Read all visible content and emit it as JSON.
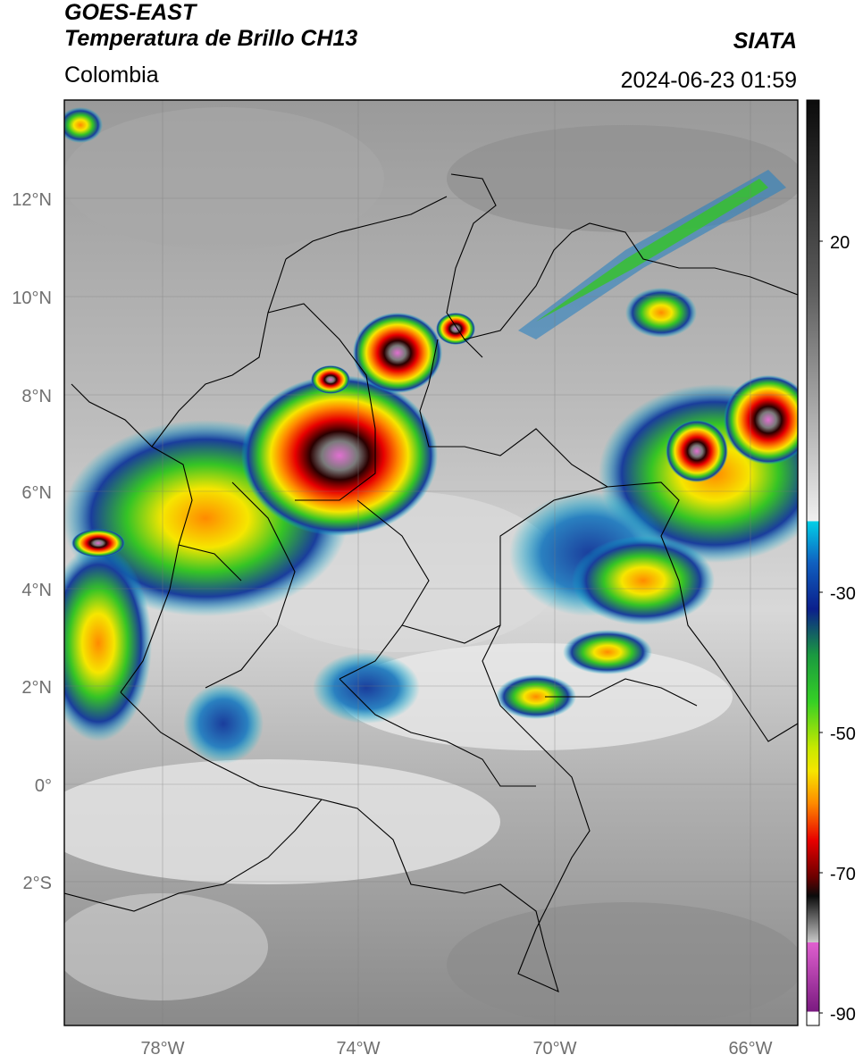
{
  "header": {
    "satellite": "GOES-EAST",
    "product": "Temperatura de Brillo CH13",
    "region": "Colombia",
    "agency": "SIATA",
    "timestamp": "2024-06-23 01:59"
  },
  "map": {
    "lat_labels": [
      "12°N",
      "10°N",
      "8°N",
      "6°N",
      "4°N",
      "2°N",
      "0°",
      "2°S"
    ],
    "lon_labels": [
      "78°W",
      "74°W",
      "70°W",
      "66°W"
    ],
    "lon_range": [
      -80,
      -65
    ],
    "lat_range": [
      -5,
      14
    ]
  },
  "colorbar": {
    "ticks": [
      "20",
      "-30",
      "-50",
      "-70",
      "-90"
    ],
    "colors": {
      "top": "#0b0b0b",
      "gray_mid": "#8a8a8a",
      "light": "#e8e8e8",
      "cyan": "#00bcd4",
      "blue": "#1a3d9c",
      "green": "#35c425",
      "yellow": "#f6e600",
      "orange": "#ff8a00",
      "red": "#e80000",
      "dark_red": "#6a0000",
      "magenta": "#d040c0",
      "purple": "#7a1a80"
    }
  }
}
